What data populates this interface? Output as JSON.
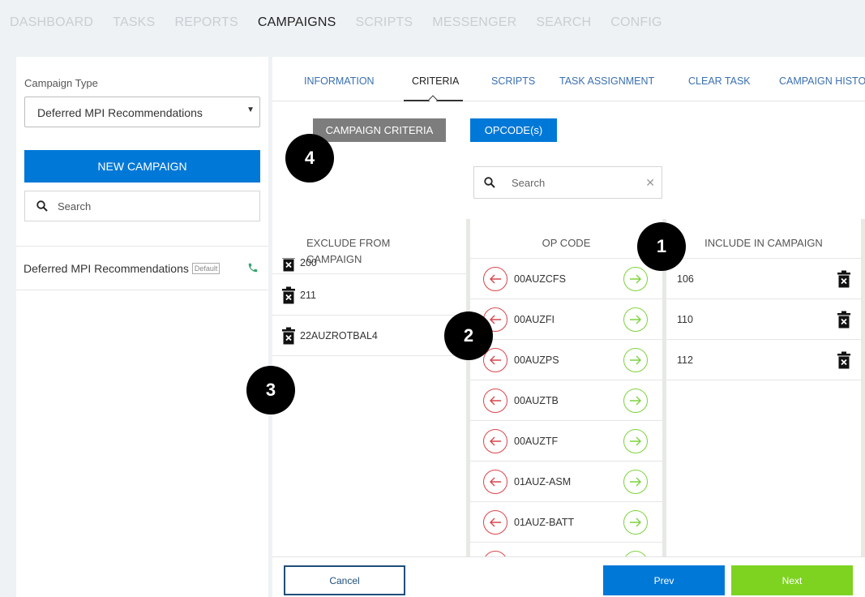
{
  "nav": {
    "items": [
      "DASHBOARD",
      "TASKS",
      "REPORTS",
      "CAMPAIGNS",
      "SCRIPTS",
      "MESSENGER",
      "SEARCH",
      "CONFIG"
    ],
    "active_index": 3
  },
  "left_panel": {
    "campaign_type_label": "Campaign Type",
    "campaign_type_value": "Deferred MPI Recommendations",
    "new_campaign_label": "NEW CAMPAIGN",
    "search_placeholder": "Search",
    "campaigns": [
      {
        "name": "Deferred MPI Recommendations",
        "badge": "Default",
        "icon": "phone-icon"
      }
    ]
  },
  "tabs": [
    "INFORMATION",
    "CRITERIA",
    "SCRIPTS",
    "TASK ASSIGNMENT",
    "CLEAR TASK",
    "CAMPAIGN HISTO"
  ],
  "active_tab": "CRITERIA",
  "criteria": {
    "campaign_criteria_label": "CAMPAIGN CRITERIA",
    "opcodes_label": "OPCODE(s)",
    "search_placeholder": "Search",
    "exclude_header": "EXCLUDE FROM\nCAMPAIGN",
    "opcode_header": "OP CODE",
    "include_header": "INCLUDE IN CAMPAIGN",
    "exclude_items": [
      "200",
      "211",
      "22AUZROTBAL4"
    ],
    "opcodes": [
      "00AUZCFS",
      "00AUZFI",
      "00AUZPS",
      "00AUZTB",
      "00AUZTF",
      "01AUZ-ASM",
      "01AUZ-BATT",
      ""
    ],
    "include_items": [
      "106",
      "110",
      "112"
    ]
  },
  "footer": {
    "cancel_label": "Cancel",
    "prev_label": "Prev",
    "next_label": "Next"
  },
  "markers": [
    "1",
    "2",
    "3",
    "4"
  ],
  "colors": {
    "primary": "#0078d7",
    "next": "#7ed321",
    "remove": "#d9454a",
    "add": "#7dd33e",
    "criteria_button": "#7d7d7d"
  }
}
